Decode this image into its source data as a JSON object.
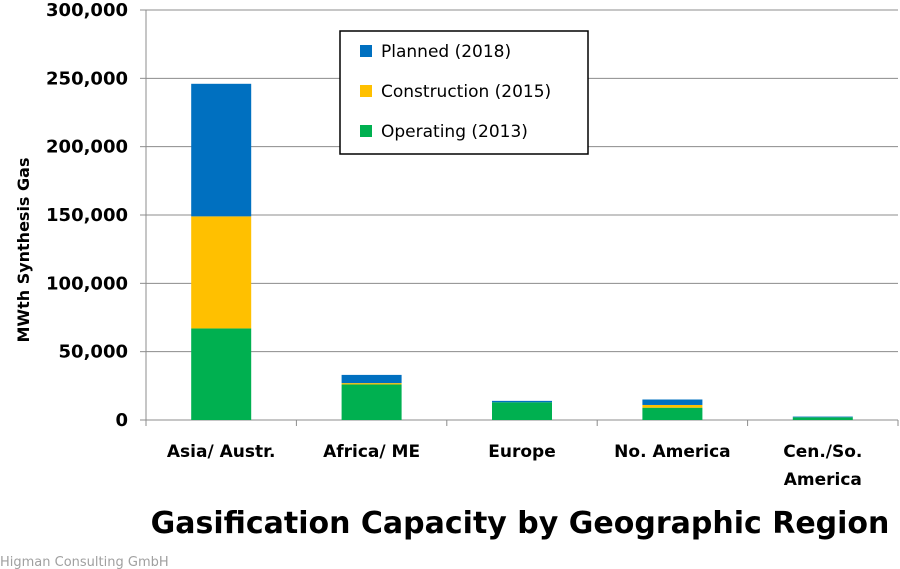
{
  "chart_data": {
    "type": "bar",
    "stacked": true,
    "title": "Gasification Capacity by Geographic Region",
    "xlabel": "",
    "ylabel": "MWth Synthesis Gas",
    "ylim": [
      0,
      300000
    ],
    "yticks": [
      0,
      50000,
      100000,
      150000,
      200000,
      250000,
      300000
    ],
    "ytick_labels": [
      "0",
      "50,000",
      "100,000",
      "150,000",
      "200,000",
      "250,000",
      "300,000"
    ],
    "grid": true,
    "legend_position": "top-center",
    "categories": [
      [
        "Asia/ Austr."
      ],
      [
        "Africa/ ME"
      ],
      [
        "Europe"
      ],
      [
        "No. America"
      ],
      [
        "Cen./So.",
        "America"
      ]
    ],
    "series": [
      {
        "name": "Operating (2013)",
        "color": "#00B050",
        "values": [
          67000,
          26000,
          13000,
          9000,
          2000
        ]
      },
      {
        "name": "Construction (2015)",
        "color": "#FFC000",
        "values": [
          82000,
          1000,
          0,
          2000,
          0
        ]
      },
      {
        "name": "Planned (2018)",
        "color": "#0070C0",
        "values": [
          97000,
          6000,
          1000,
          4000,
          500
        ]
      }
    ],
    "legend_order": [
      2,
      1,
      0
    ]
  },
  "watermark": "Higman Consulting GmbH"
}
